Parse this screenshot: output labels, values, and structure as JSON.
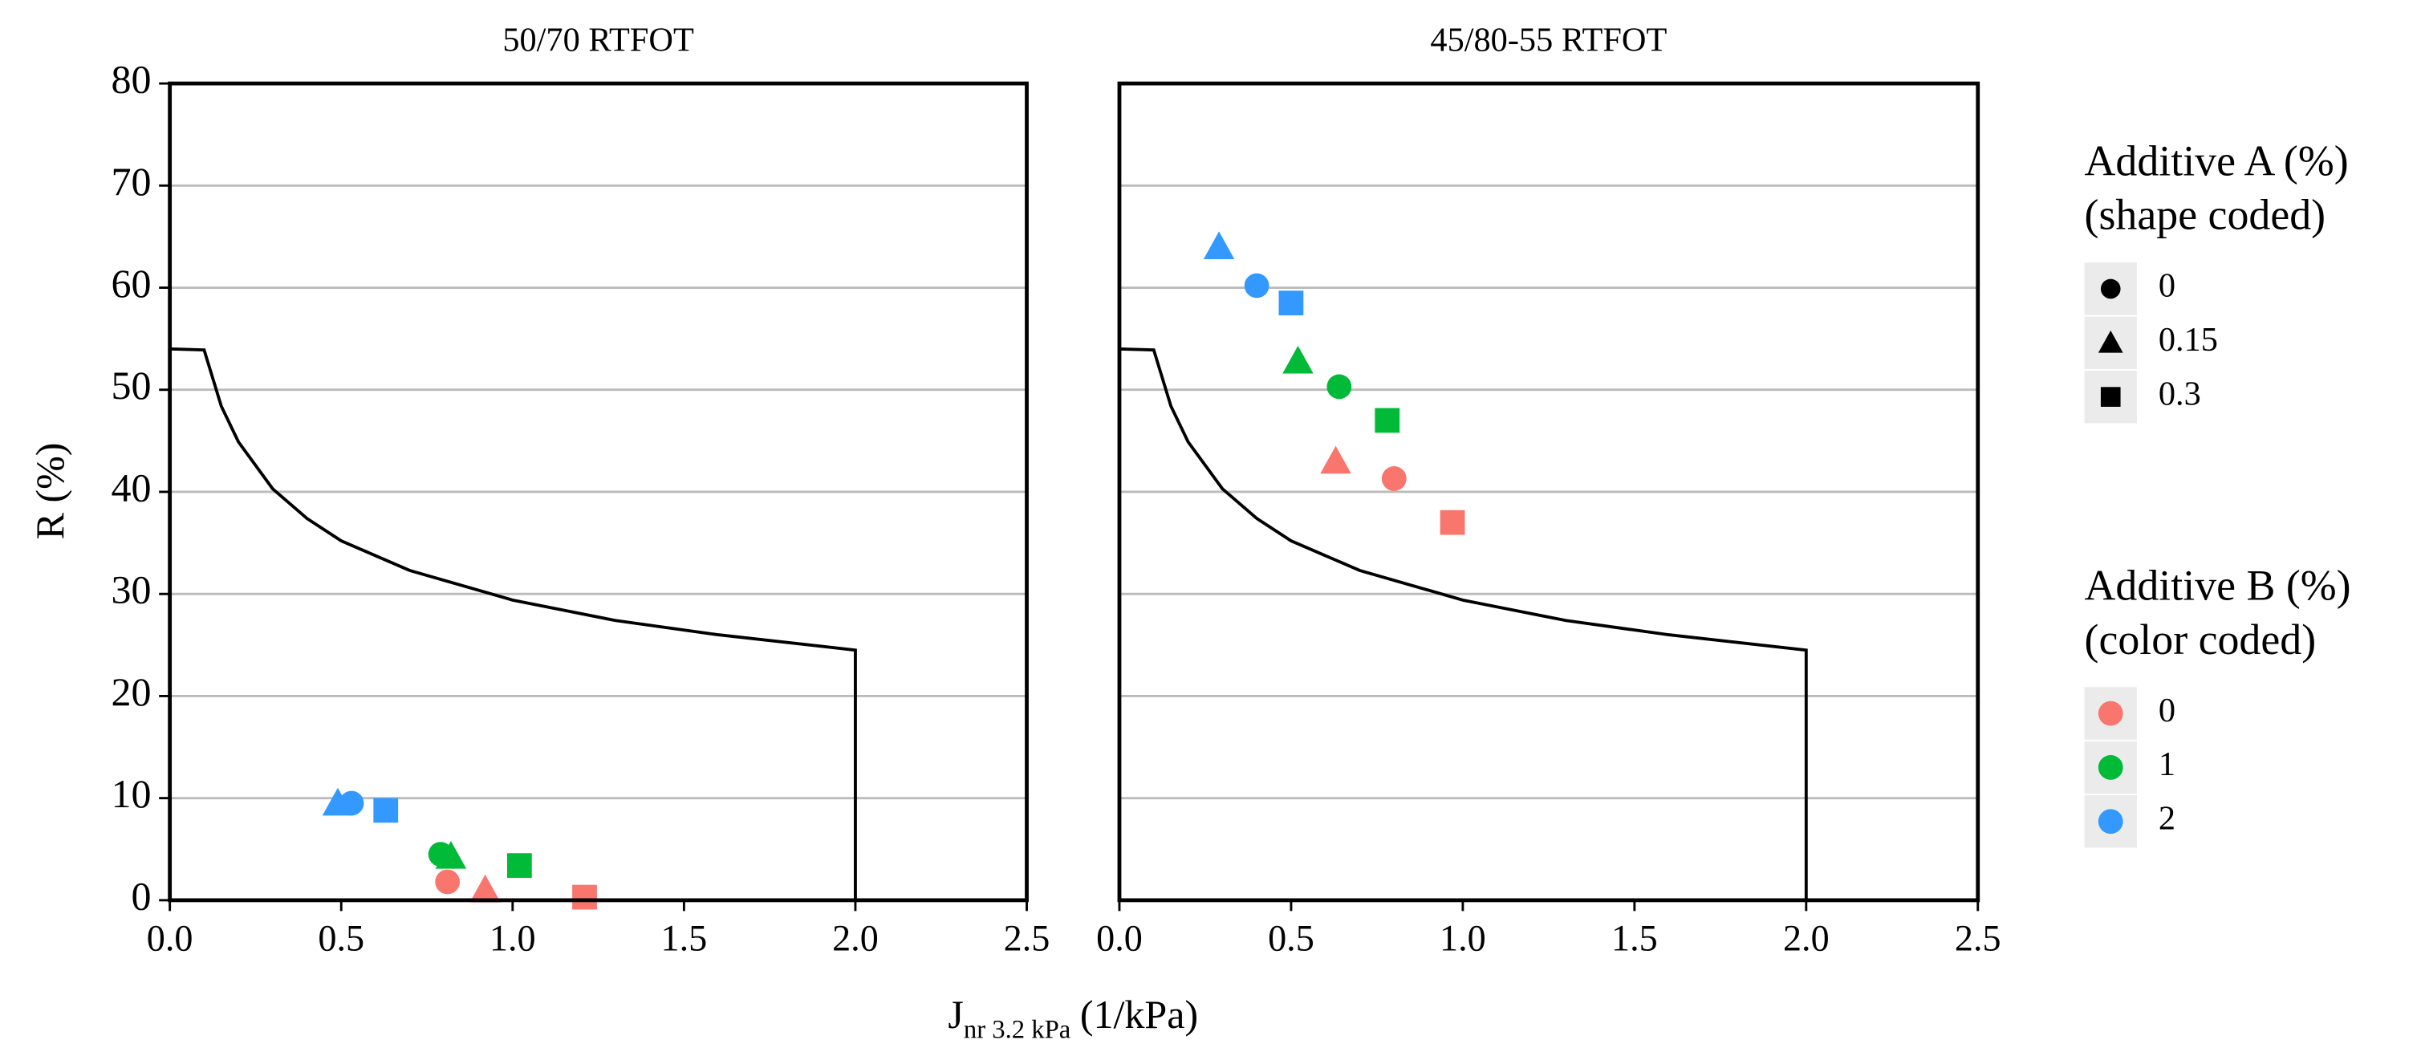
{
  "x_label": {
    "main": "J",
    "sub": "nr 3.2 kPa",
    "unit": "(1/kPa)"
  },
  "y_label": "R (%)",
  "legend_shape": {
    "title": [
      "Additive A (%)",
      "(shape coded)"
    ],
    "entries": [
      {
        "label": "0",
        "shape": "circle"
      },
      {
        "label": "0.15",
        "shape": "triangle"
      },
      {
        "label": "0.3",
        "shape": "square"
      }
    ]
  },
  "legend_color": {
    "title": [
      "Additive B (%)",
      "(color coded)"
    ],
    "entries": [
      {
        "label": "0",
        "color": "#f8766d"
      },
      {
        "label": "1",
        "color": "#00ba38"
      },
      {
        "label": "2",
        "color": "#3399ff"
      }
    ]
  },
  "chart_data": [
    {
      "type": "scatter",
      "title": "50/70 RTFOT",
      "xlim": [
        0,
        2.5
      ],
      "ylim": [
        0,
        80
      ],
      "xticks": [
        {
          "value": 0,
          "label": "0.0"
        },
        0.5,
        {
          "value": 1,
          "label": "1.0"
        },
        1.5,
        {
          "value": 2,
          "label": "2.0"
        },
        2.5
      ],
      "yticks": [
        0,
        10,
        20,
        30,
        40,
        50,
        60,
        70,
        80
      ],
      "grid": true,
      "limit_curve": {
        "x": [
          0,
          0.1,
          0.15,
          0.2,
          0.3,
          0.4,
          0.5,
          0.7,
          1.0,
          1.3,
          1.6,
          2.0,
          2.0
        ],
        "values": [
          54,
          53.9,
          48.4,
          44.9,
          40.3,
          37.4,
          35.2,
          32.3,
          29.4,
          27.4,
          26.0,
          24.5,
          0
        ]
      },
      "series": [
        {
          "shape": "triangle",
          "color": "#3399ff",
          "x": [
            0.49
          ],
          "values": [
            9.5
          ]
        },
        {
          "shape": "circle",
          "color": "#3399ff",
          "x": [
            0.53
          ],
          "values": [
            9.5
          ]
        },
        {
          "shape": "square",
          "color": "#3399ff",
          "x": [
            0.63
          ],
          "values": [
            8.8
          ]
        },
        {
          "shape": "circle",
          "color": "#00ba38",
          "x": [
            0.79
          ],
          "values": [
            4.5
          ]
        },
        {
          "shape": "triangle",
          "color": "#00ba38",
          "x": [
            0.82
          ],
          "values": [
            4.3
          ]
        },
        {
          "shape": "square",
          "color": "#00ba38",
          "x": [
            1.02
          ],
          "values": [
            3.4
          ]
        },
        {
          "shape": "circle",
          "color": "#f8766d",
          "x": [
            0.81
          ],
          "values": [
            1.8
          ]
        },
        {
          "shape": "triangle",
          "color": "#f8766d",
          "x": [
            0.92
          ],
          "values": [
            1.0
          ]
        },
        {
          "shape": "square",
          "color": "#f8766d",
          "x": [
            1.21
          ],
          "values": [
            0.3
          ]
        }
      ]
    },
    {
      "type": "scatter",
      "title": "45/80-55 RTFOT",
      "xlim": [
        0,
        2.5
      ],
      "ylim": [
        0,
        80
      ],
      "xticks": [
        {
          "value": 0,
          "label": "0.0"
        },
        0.5,
        {
          "value": 1,
          "label": "1.0"
        },
        1.5,
        {
          "value": 2,
          "label": "2.0"
        },
        2.5
      ],
      "grid": true,
      "limit_curve": {
        "x": [
          0,
          0.1,
          0.15,
          0.2,
          0.3,
          0.4,
          0.5,
          0.7,
          1.0,
          1.3,
          1.6,
          2.0,
          2.0
        ],
        "values": [
          54,
          53.9,
          48.4,
          44.9,
          40.3,
          37.4,
          35.2,
          32.3,
          29.4,
          27.4,
          26.0,
          24.5,
          0
        ]
      },
      "series": [
        {
          "shape": "triangle",
          "color": "#3399ff",
          "x": [
            0.29
          ],
          "values": [
            64
          ]
        },
        {
          "shape": "circle",
          "color": "#3399ff",
          "x": [
            0.4
          ],
          "values": [
            60.2
          ]
        },
        {
          "shape": "square",
          "color": "#3399ff",
          "x": [
            0.5
          ],
          "values": [
            58.5
          ]
        },
        {
          "shape": "triangle",
          "color": "#00ba38",
          "x": [
            0.52
          ],
          "values": [
            52.8
          ]
        },
        {
          "shape": "circle",
          "color": "#00ba38",
          "x": [
            0.64
          ],
          "values": [
            50.3
          ]
        },
        {
          "shape": "square",
          "color": "#00ba38",
          "x": [
            0.78
          ],
          "values": [
            47
          ]
        },
        {
          "shape": "triangle",
          "color": "#f8766d",
          "x": [
            0.63
          ],
          "values": [
            43
          ]
        },
        {
          "shape": "circle",
          "color": "#f8766d",
          "x": [
            0.8
          ],
          "values": [
            41.3
          ]
        },
        {
          "shape": "square",
          "color": "#f8766d",
          "x": [
            0.97
          ],
          "values": [
            37
          ]
        }
      ]
    }
  ]
}
